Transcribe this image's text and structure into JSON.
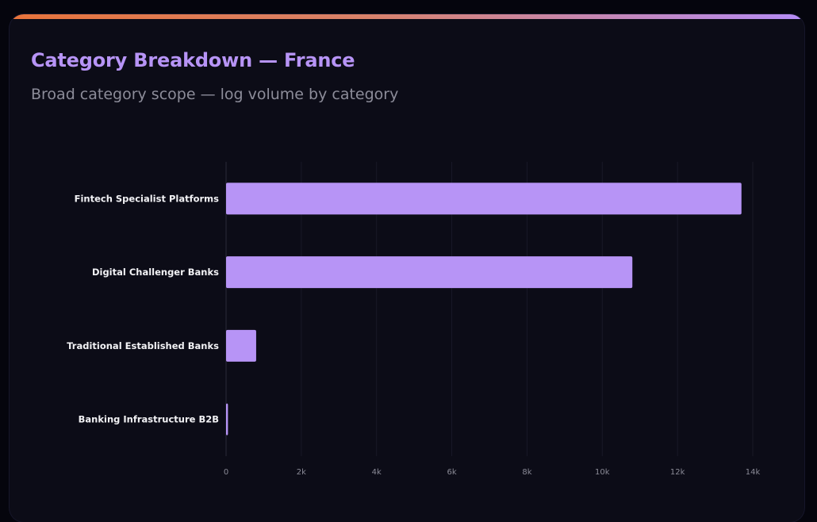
{
  "card": {
    "title": "Category Breakdown — France",
    "subtitle": "Broad category scope — log volume by category"
  },
  "colors": {
    "bar": "#b794f6",
    "title": "#b794f6",
    "background": "#0c0c17"
  },
  "chart_data": {
    "type": "bar",
    "orientation": "horizontal",
    "categories": [
      "Fintech Specialist Platforms",
      "Digital Challenger Banks",
      "Traditional Established Banks",
      "Banking Infrastructure B2B"
    ],
    "values": [
      13700,
      10800,
      800,
      50
    ],
    "xlim": [
      0,
      14000
    ],
    "x_ticks": [
      0,
      2000,
      4000,
      6000,
      8000,
      10000,
      12000,
      14000
    ],
    "x_tick_labels": [
      "0",
      "2k",
      "4k",
      "6k",
      "8k",
      "10k",
      "12k",
      "14k"
    ],
    "grid": "vertical",
    "title": "",
    "xlabel": "",
    "ylabel": ""
  }
}
